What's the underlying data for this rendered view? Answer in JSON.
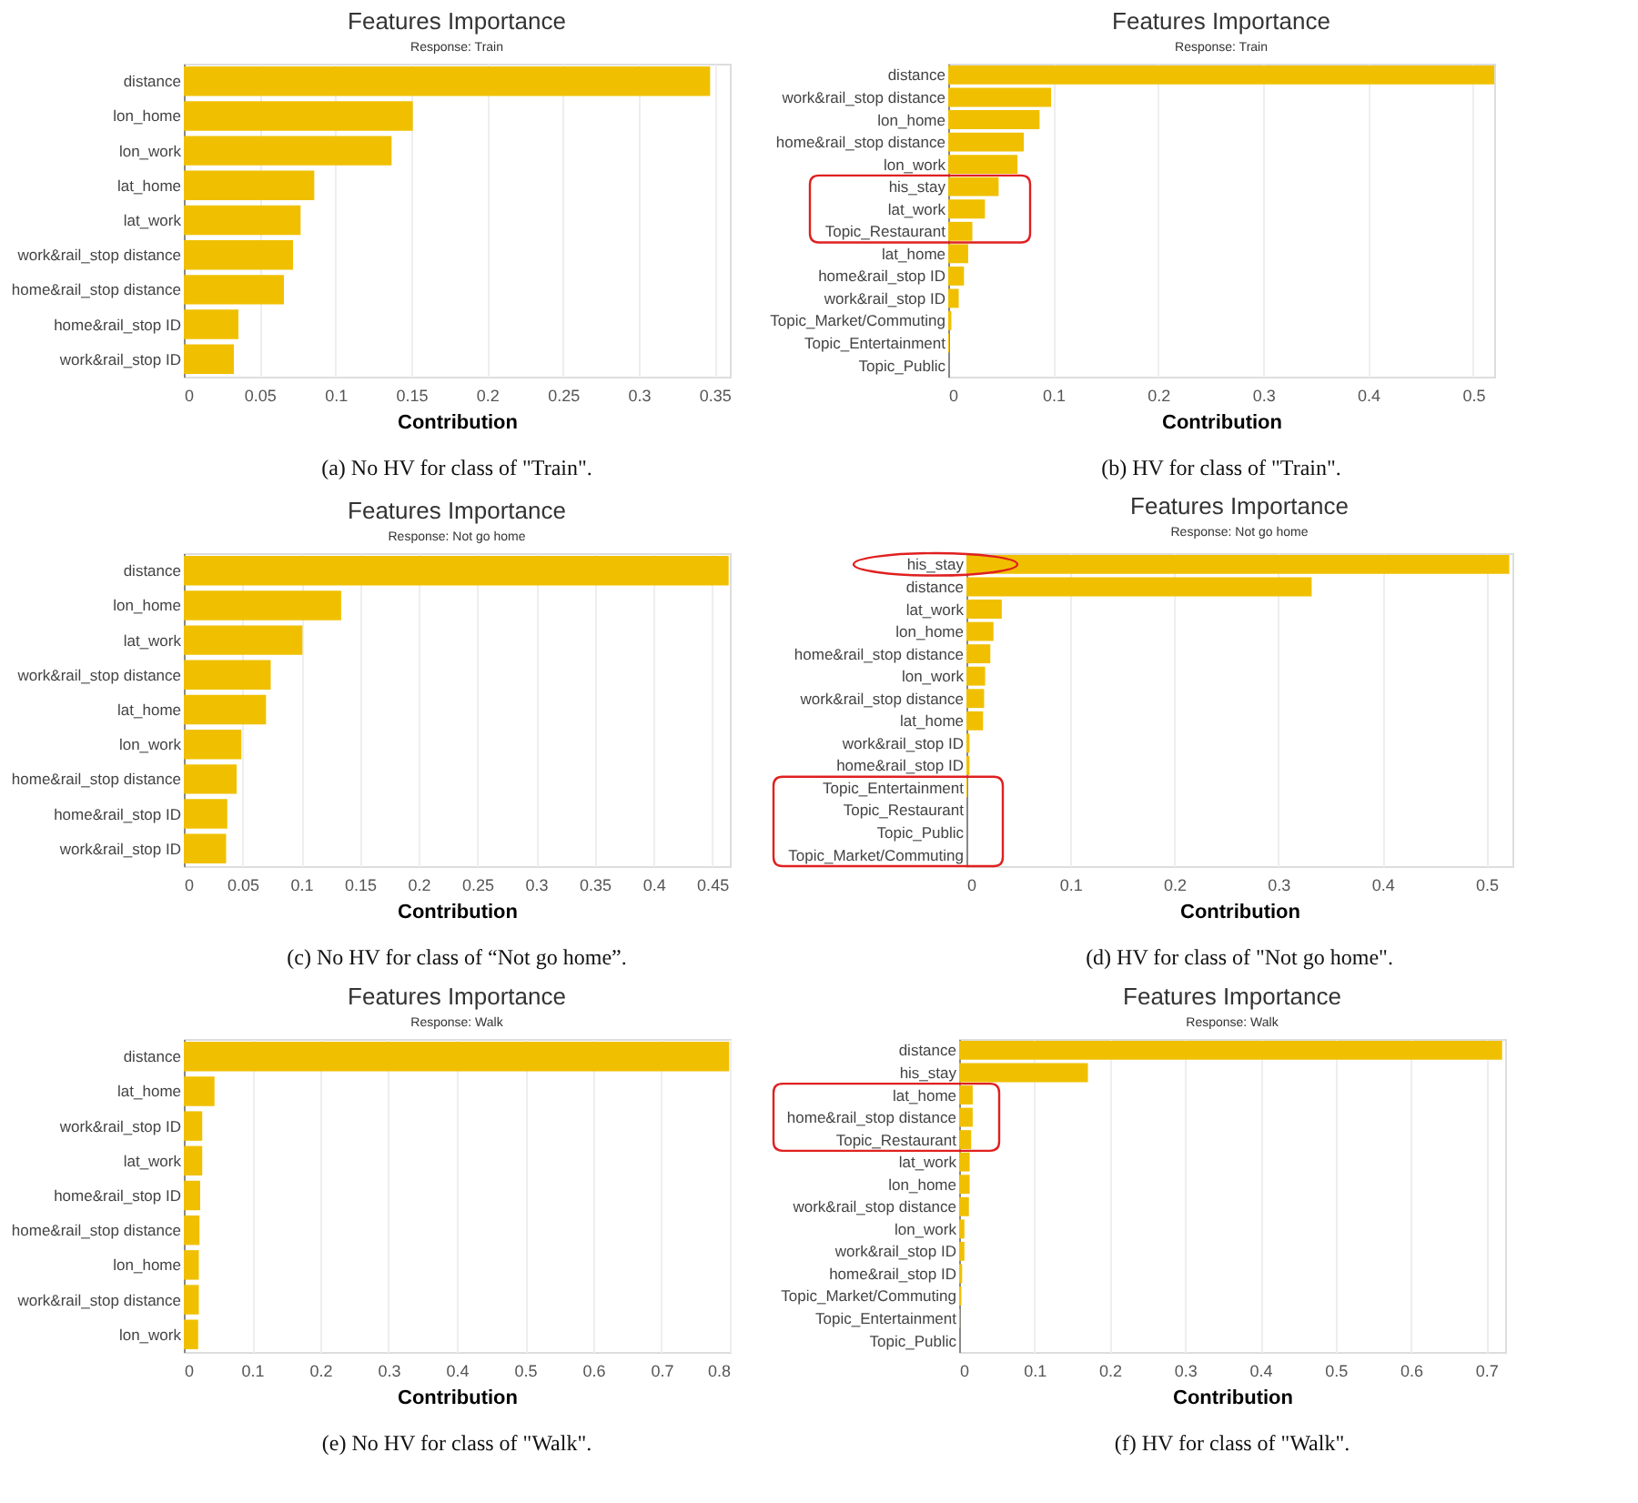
{
  "chart_data": [
    {
      "type": "bar",
      "orientation": "horizontal",
      "title": "Features Importance",
      "subtitle": "Response: Train",
      "xlabel": "Contribution",
      "annotations": [
        "(a) No HV for class of \"Train\"."
      ],
      "grid": "x",
      "color": "#f0c000",
      "categories": [
        "distance",
        "lon_home",
        "lon_work",
        "lat_home",
        "lat_work",
        "work&rail_stop distance",
        "home&rail_stop distance",
        "home&rail_stop ID",
        "work&rail_stop ID"
      ],
      "values": [
        0.347,
        0.151,
        0.137,
        0.086,
        0.077,
        0.072,
        0.066,
        0.036,
        0.033
      ],
      "xlim": [
        0,
        0.36
      ],
      "xticks": [
        0,
        0.05,
        0.1,
        0.15,
        0.2,
        0.25,
        0.3,
        0.35
      ]
    },
    {
      "type": "bar",
      "orientation": "horizontal",
      "title": "Features Importance",
      "subtitle": "Response: Train",
      "xlabel": "Contribution",
      "annotations": [
        "(b) HV for class of \"Train\"."
      ],
      "grid": "x",
      "color": "#f0c000",
      "categories": [
        "distance",
        "work&rail_stop distance",
        "lon_home",
        "home&rail_stop distance",
        "lon_work",
        "his_stay",
        "lat_work",
        "Topic_Restaurant",
        "lat_home",
        "home&rail_stop ID",
        "work&rail_stop ID",
        "Topic_Market/Commuting",
        "Topic_Entertainment",
        "Topic_Public"
      ],
      "values": [
        0.52,
        0.098,
        0.087,
        0.072,
        0.066,
        0.048,
        0.035,
        0.023,
        0.019,
        0.015,
        0.01,
        0.003,
        0.001,
        0
      ],
      "xlim": [
        0,
        0.52
      ],
      "xticks": [
        0,
        0.1,
        0.2,
        0.3,
        0.4,
        0.5
      ]
    },
    {
      "type": "bar",
      "orientation": "horizontal",
      "title": "Features Importance",
      "subtitle": "Response: Not go home",
      "xlabel": "Contribution",
      "annotations": [
        "(c) No HV for class of “Not go home”."
      ],
      "grid": "x",
      "color": "#f0c000",
      "categories": [
        "distance",
        "lon_home",
        "lat_work",
        "work&rail_stop distance",
        "lat_home",
        "lon_work",
        "home&rail_stop distance",
        "home&rail_stop ID",
        "work&rail_stop ID"
      ],
      "values": [
        0.464,
        0.134,
        0.101,
        0.074,
        0.07,
        0.049,
        0.045,
        0.037,
        0.036
      ],
      "xlim": [
        0,
        0.465
      ],
      "xticks": [
        0,
        0.05,
        0.1,
        0.15,
        0.2,
        0.25,
        0.3,
        0.35,
        0.4,
        0.45
      ]
    },
    {
      "type": "bar",
      "orientation": "horizontal",
      "title": "Features Importance",
      "subtitle": "Response: Not go home",
      "xlabel": "Contribution",
      "annotations": [
        "(d) HV for class of \"Not go home\"."
      ],
      "grid": "x",
      "color": "#f0c000",
      "categories": [
        "his_stay",
        "distance",
        "lat_work",
        "lon_home",
        "home&rail_stop distance",
        "lon_work",
        "work&rail_stop distance",
        "lat_home",
        "work&rail_stop ID",
        "home&rail_stop ID",
        "Topic_Entertainment",
        "Topic_Restaurant",
        "Topic_Public",
        "Topic_Market/Commuting"
      ],
      "values": [
        0.522,
        0.332,
        0.034,
        0.026,
        0.023,
        0.018,
        0.017,
        0.016,
        0.003,
        0.003,
        0.001,
        0,
        0,
        0
      ],
      "xlim": [
        0,
        0.525
      ],
      "xticks": [
        0,
        0.1,
        0.2,
        0.3,
        0.4,
        0.5
      ]
    },
    {
      "type": "bar",
      "orientation": "horizontal",
      "title": "Features Importance",
      "subtitle": "Response: Walk",
      "xlabel": "Contribution",
      "annotations": [
        "(e) No HV for class of \"Walk\"."
      ],
      "grid": "x",
      "color": "#f0c000",
      "categories": [
        "distance",
        "lat_home",
        "work&rail_stop ID",
        "lat_work",
        "home&rail_stop ID",
        "home&rail_stop distance",
        "lon_home",
        "work&rail_stop distance",
        "lon_work"
      ],
      "values": [
        0.799,
        0.045,
        0.027,
        0.027,
        0.024,
        0.023,
        0.022,
        0.022,
        0.021
      ],
      "xlim": [
        0,
        0.8
      ],
      "xticks": [
        0,
        0.1,
        0.2,
        0.3,
        0.4,
        0.5,
        0.6,
        0.7,
        0.8
      ]
    },
    {
      "type": "bar",
      "orientation": "horizontal",
      "title": "Features Importance",
      "subtitle": "Response: Walk",
      "xlabel": "Contribution",
      "annotations": [
        "(f) HV for class of \"Walk\"."
      ],
      "grid": "x",
      "color": "#f0c000",
      "categories": [
        "distance",
        "his_stay",
        "lat_home",
        "home&rail_stop distance",
        "Topic_Restaurant",
        "lat_work",
        "lon_home",
        "work&rail_stop distance",
        "lon_work",
        "work&rail_stop ID",
        "home&rail_stop ID",
        "Topic_Market/Commuting",
        "Topic_Entertainment",
        "Topic_Public"
      ],
      "values": [
        0.721,
        0.171,
        0.018,
        0.018,
        0.016,
        0.014,
        0.014,
        0.013,
        0.007,
        0.007,
        0.004,
        0.003,
        0.001,
        0
      ],
      "xlim": [
        0,
        0.725
      ],
      "xticks": [
        0,
        0.1,
        0.2,
        0.3,
        0.4,
        0.5,
        0.6,
        0.7
      ]
    }
  ]
}
